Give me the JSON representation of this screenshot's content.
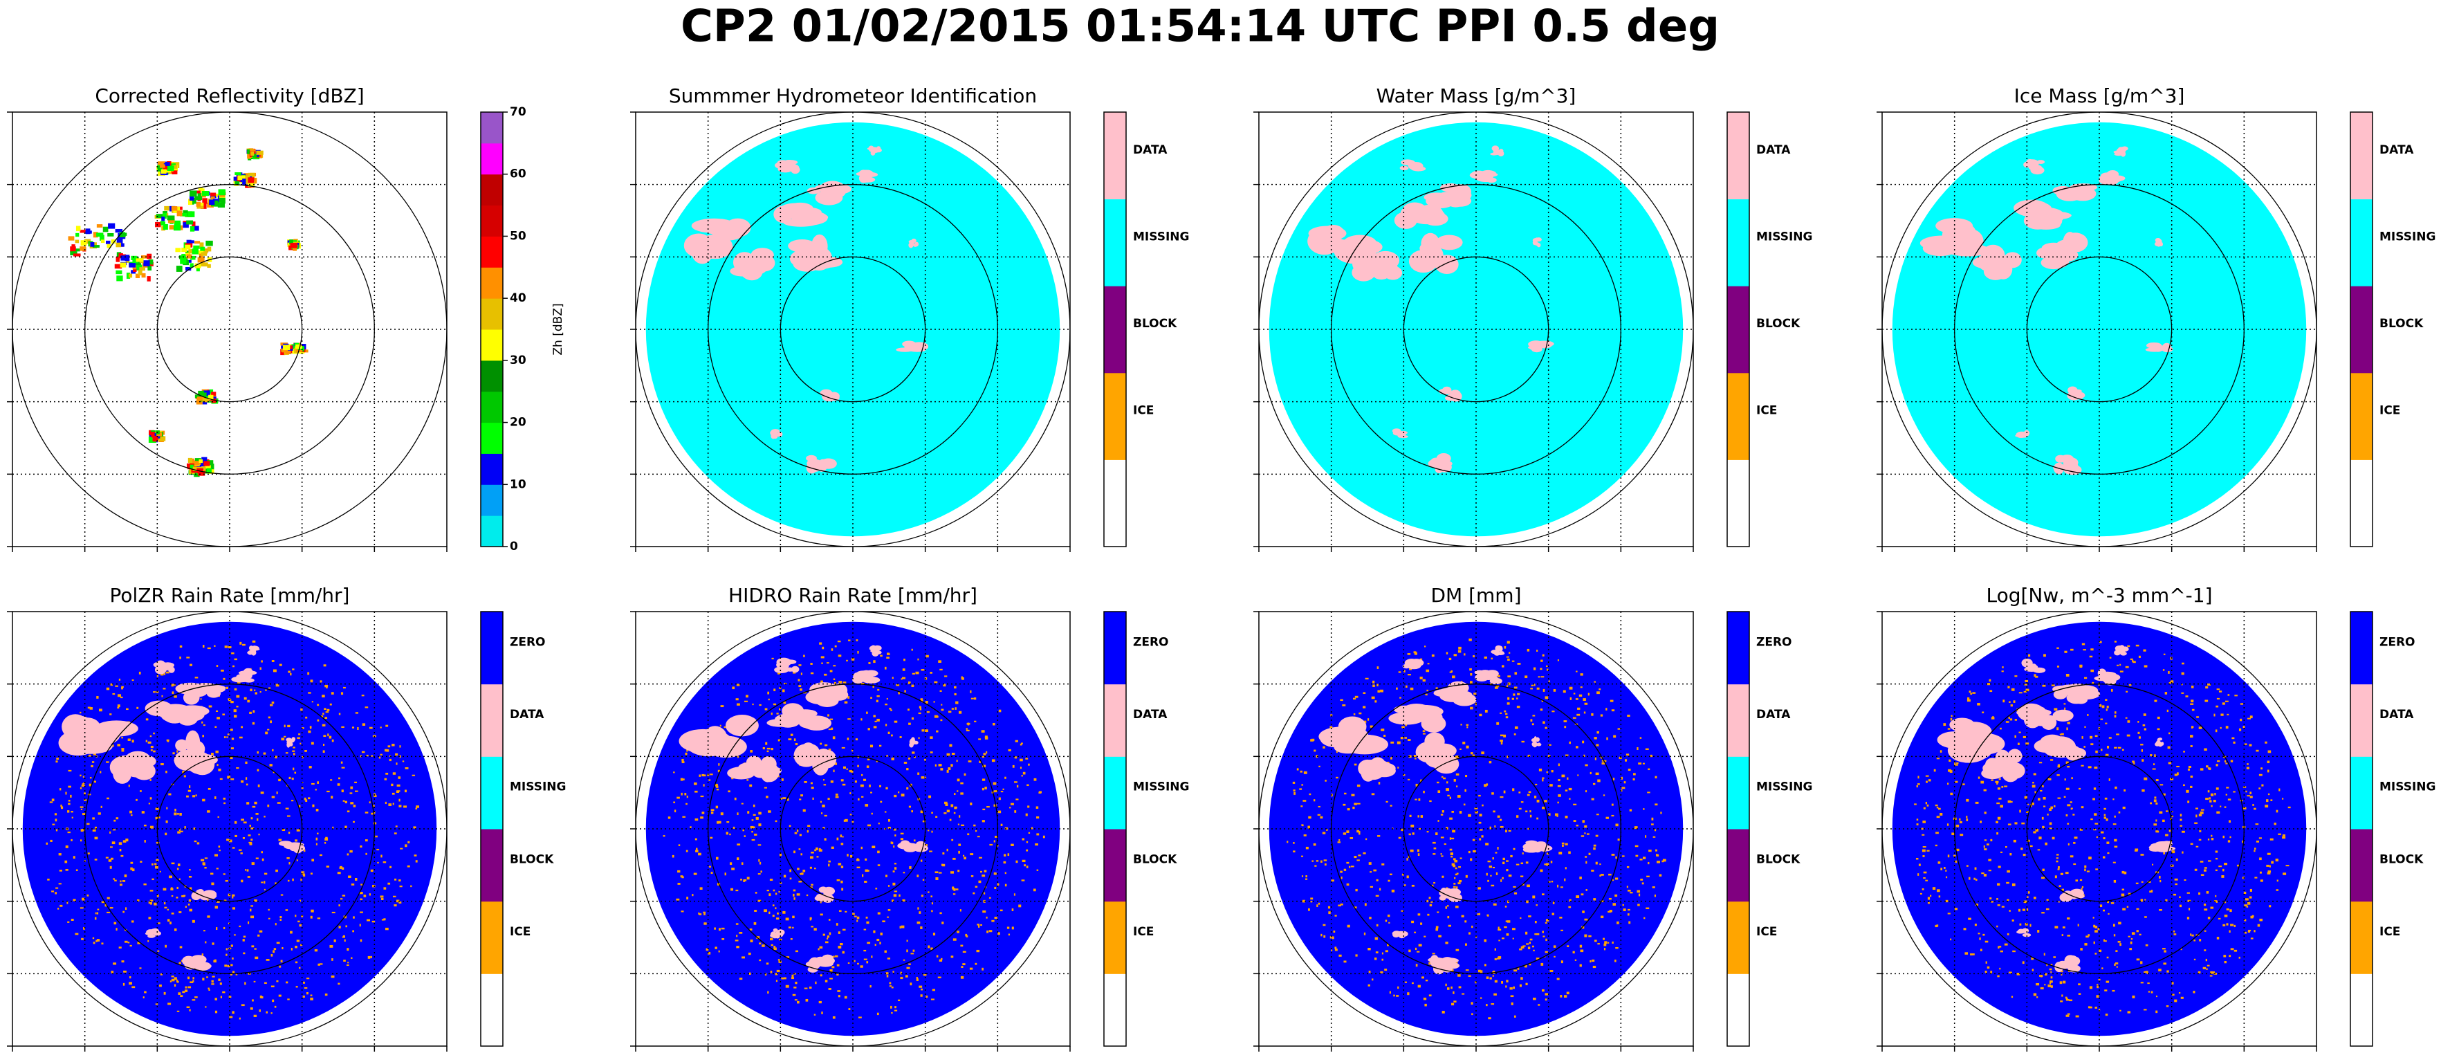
{
  "title": "CP2 01/02/2015 01:54:14 UTC PPI 0.5 deg",
  "chart_data": [
    {
      "type": "ppi",
      "title": "Corrected Reflectivity [dBZ]",
      "disc_color": null,
      "colorbar": {
        "label": "Zh [dBZ]",
        "ylim": [
          0,
          70
        ],
        "yticks": [
          0,
          10,
          20,
          30,
          40,
          50,
          60,
          70
        ],
        "colors": [
          "#00ECEC",
          "#01A0F6",
          "#0000F6",
          "#00FF00",
          "#00C800",
          "#009000",
          "#FFFF00",
          "#E7C000",
          "#FF9000",
          "#FF0000",
          "#D60000",
          "#C00000",
          "#FF00FF",
          "#9955C9"
        ]
      }
    },
    {
      "type": "ppi",
      "title": "Summmer Hydrometeor Identification",
      "disc_color": "#00FFFF",
      "colorbar": {
        "categories": [
          null,
          "ICE",
          "BLOCK",
          "MISSING",
          "DATA"
        ],
        "colors": [
          "#FFFFFF",
          "#FFA500",
          "#800080",
          "#00FFFF",
          "#FFC0CB"
        ]
      }
    },
    {
      "type": "ppi",
      "title": "Water Mass [g/m^3]",
      "disc_color": "#00FFFF",
      "colorbar": {
        "categories": [
          null,
          "ICE",
          "BLOCK",
          "MISSING",
          "DATA"
        ],
        "colors": [
          "#FFFFFF",
          "#FFA500",
          "#800080",
          "#00FFFF",
          "#FFC0CB"
        ]
      }
    },
    {
      "type": "ppi",
      "title": "Ice Mass [g/m^3]",
      "disc_color": "#00FFFF",
      "colorbar": {
        "categories": [
          null,
          "ICE",
          "BLOCK",
          "MISSING",
          "DATA"
        ],
        "colors": [
          "#FFFFFF",
          "#FFA500",
          "#800080",
          "#00FFFF",
          "#FFC0CB"
        ]
      }
    },
    {
      "type": "ppi",
      "title": "PolZR Rain Rate [mm/hr]",
      "disc_color": "#0000FF",
      "colorbar": {
        "categories": [
          null,
          "ICE",
          "BLOCK",
          "MISSING",
          "DATA",
          "ZERO"
        ],
        "colors": [
          "#FFFFFF",
          "#FFA500",
          "#800080",
          "#00FFFF",
          "#FFC0CB",
          "#0000FF"
        ]
      }
    },
    {
      "type": "ppi",
      "title": "HIDRO Rain Rate [mm/hr]",
      "disc_color": "#0000FF",
      "colorbar": {
        "categories": [
          null,
          "ICE",
          "BLOCK",
          "MISSING",
          "DATA",
          "ZERO"
        ],
        "colors": [
          "#FFFFFF",
          "#FFA500",
          "#800080",
          "#00FFFF",
          "#FFC0CB",
          "#0000FF"
        ]
      }
    },
    {
      "type": "ppi",
      "title": "DM [mm]",
      "disc_color": "#0000FF",
      "colorbar": {
        "categories": [
          null,
          "ICE",
          "BLOCK",
          "MISSING",
          "DATA",
          "ZERO"
        ],
        "colors": [
          "#FFFFFF",
          "#FFA500",
          "#800080",
          "#00FFFF",
          "#FFC0CB",
          "#0000FF"
        ]
      }
    },
    {
      "type": "ppi",
      "title": "Log[Nw, m^-3 mm^-1]",
      "disc_color": "#0000FF",
      "colorbar": {
        "categories": [
          null,
          "ICE",
          "BLOCK",
          "MISSING",
          "DATA",
          "ZERO"
        ],
        "colors": [
          "#FFFFFF",
          "#FFA500",
          "#800080",
          "#00FFFF",
          "#FFC0CB",
          "#0000FF"
        ]
      }
    }
  ]
}
